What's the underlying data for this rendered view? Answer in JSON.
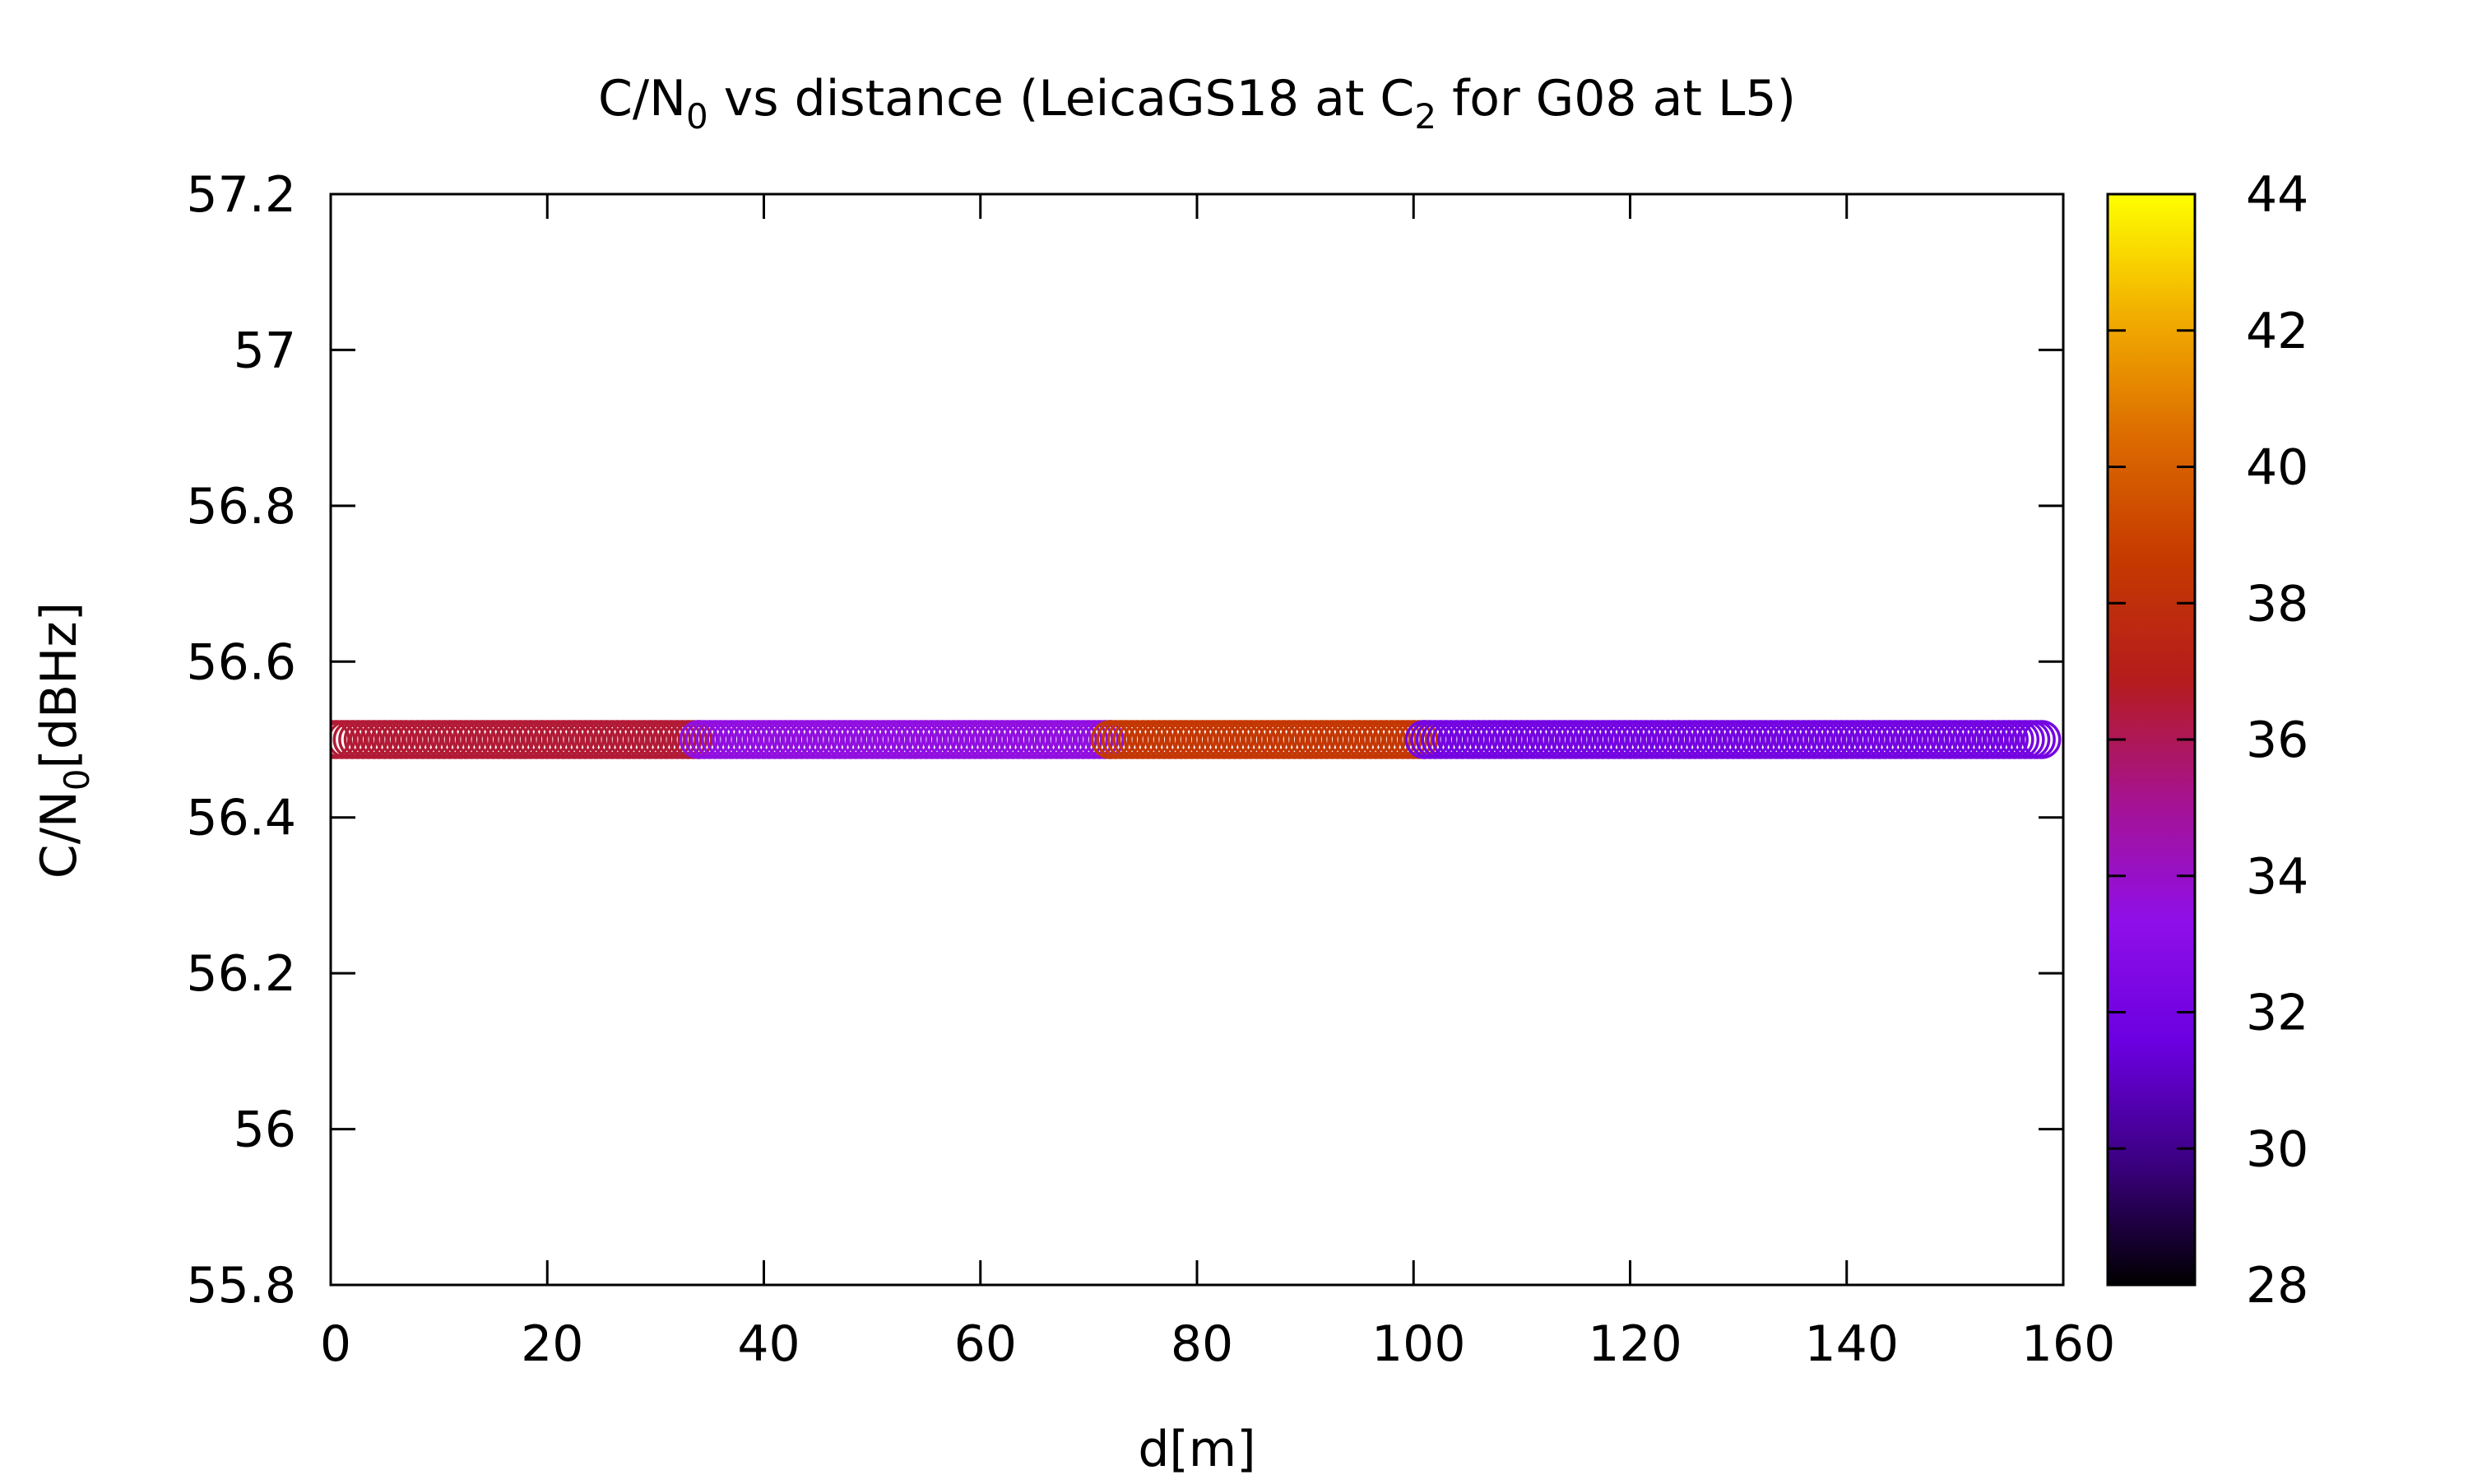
{
  "chart_data": {
    "type": "scatter",
    "title": {
      "pre": "C/N",
      "sub1": "0",
      "mid": " vs distance (LeicaGS18 at C",
      "sub2": "2",
      "post": " for G08 at L5)"
    },
    "xlabel": "d[m]",
    "ylabel": {
      "pre": "C/N",
      "sub": "0",
      "post": "[dBHz]"
    },
    "xlim": [
      0,
      160
    ],
    "ylim": [
      55.8,
      57.2
    ],
    "x_ticks": [
      "0",
      "20",
      "40",
      "60",
      "80",
      "100",
      "120",
      "140",
      "160"
    ],
    "y_ticks": [
      "55.8",
      "56",
      "56.2",
      "56.4",
      "56.6",
      "56.8",
      "57",
      "57.2"
    ],
    "colorbar": {
      "range": [
        28,
        44
      ],
      "ticks": [
        "28",
        "30",
        "32",
        "34",
        "36",
        "38",
        "40",
        "42",
        "44"
      ],
      "palette": [
        "#000000",
        "#3b0080",
        "#6b00e0",
        "#8f0fe8",
        "#a61390",
        "#b51c1c",
        "#c63a00",
        "#dc6b00",
        "#f2ae00",
        "#ffff00"
      ]
    },
    "marker": "open-circle",
    "grid": false,
    "legend": "none",
    "series": [
      {
        "segments": [
          {
            "x_from": 0,
            "x_to": 34,
            "step": 0.5,
            "y": 56.5,
            "c": 36.5
          },
          {
            "x_from": 34,
            "x_to": 72,
            "step": 0.5,
            "y": 56.5,
            "c": 33.5
          },
          {
            "x_from": 72,
            "x_to": 101,
            "step": 0.5,
            "y": 56.5,
            "c": 38.5
          },
          {
            "x_from": 101,
            "x_to": 158,
            "step": 0.5,
            "y": 56.5,
            "c": 32.0
          }
        ]
      }
    ]
  }
}
